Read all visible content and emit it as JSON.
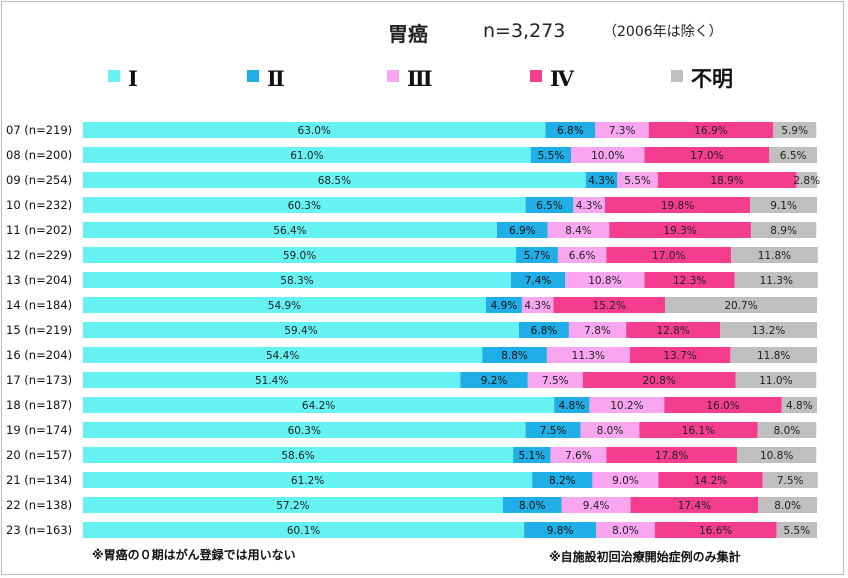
{
  "header": {
    "title": "胃癌",
    "n_label": "n=3,273",
    "exclusion": "（2006年は除く）"
  },
  "notes": {
    "left": "※胃癌の０期はがん登録では用いない",
    "right": "※自施設初回治療開始症例のみ集計"
  },
  "colors": {
    "I": "#66f2f2",
    "II": "#20aee6",
    "III": "#f9a6f1",
    "IV": "#f43d8e",
    "unknown": "#bfbfbf"
  },
  "chart_data": {
    "type": "bar",
    "stacked": "100%",
    "orientation": "horizontal",
    "legend_position": "top",
    "title": "胃癌",
    "categories": [
      "07 (n=219)",
      "08 (n=200)",
      "09 (n=254)",
      "10 (n=232)",
      "11 (n=202)",
      "12 (n=229)",
      "13 (n=204)",
      "14 (n=184)",
      "15 (n=219)",
      "16 (n=204)",
      "17 (n=173)",
      "18 (n=187)",
      "19 (n=174)",
      "20 (n=157)",
      "21 (n=134)",
      "22 (n=138)",
      "23 (n=163)"
    ],
    "series": [
      {
        "name": "Ⅰ",
        "key": "I",
        "values": [
          63.0,
          61.0,
          68.5,
          60.3,
          56.4,
          59.0,
          58.3,
          54.9,
          59.4,
          54.4,
          51.4,
          64.2,
          60.3,
          58.6,
          61.2,
          57.2,
          60.1
        ],
        "labels": [
          "63.0%",
          "61.0%",
          "68.5%",
          "60.3%",
          "56.4%",
          "59.0%",
          "58.3%",
          "54.9%",
          "59.4%",
          "54.4%",
          "51.4%",
          "64.2%",
          "60.3%",
          "58.6%",
          "61.2%",
          "57.2%",
          "60.1%"
        ]
      },
      {
        "name": "Ⅱ",
        "key": "II",
        "values": [
          6.8,
          5.5,
          4.3,
          6.5,
          6.9,
          5.7,
          7.4,
          4.9,
          6.8,
          8.8,
          9.2,
          4.8,
          7.5,
          5.1,
          8.2,
          8.0,
          9.8
        ],
        "labels": [
          "6.8%",
          "5.5%",
          "4.3%",
          "6.5%",
          "6.9%",
          "5.7%",
          "7.4%",
          "4.9%",
          "6.8%",
          "8.8%",
          "9.2%",
          "4.8%",
          "7.5%",
          "5.1%",
          "8.2%",
          "8.0%",
          "9.8%"
        ]
      },
      {
        "name": "Ⅲ",
        "key": "III",
        "values": [
          7.3,
          10.0,
          5.5,
          4.3,
          8.4,
          6.6,
          10.8,
          4.3,
          7.8,
          11.3,
          7.5,
          10.2,
          8.0,
          7.6,
          9.0,
          9.4,
          8.0
        ],
        "labels": [
          "7.3%",
          "10.0%",
          "5.5%",
          "4.3%",
          "8.4%",
          "6.6%",
          "10.8%",
          "4.3%",
          "7.8%",
          "11.3%",
          "7.5%",
          "10.2%",
          "8.0%",
          "7.6%",
          "9.0%",
          "9.4%",
          "8.0%"
        ]
      },
      {
        "name": "Ⅳ",
        "key": "IV",
        "values": [
          16.9,
          17.0,
          18.9,
          19.8,
          19.3,
          17.0,
          12.3,
          15.2,
          12.8,
          13.7,
          20.8,
          16.0,
          16.1,
          17.8,
          14.2,
          17.4,
          16.6
        ],
        "labels": [
          "16.9%",
          "17.0%",
          "18.9%",
          "19.8%",
          "19.3%",
          "17.0%",
          "12.3%",
          "15.2%",
          "12.8%",
          "13.7%",
          "20.8%",
          "16.0%",
          "16.1%",
          "17.8%",
          "14.2%",
          "17.4%",
          "16.6%"
        ]
      },
      {
        "name": "不明",
        "key": "unknown",
        "values": [
          5.9,
          6.5,
          2.8,
          9.1,
          8.9,
          11.8,
          11.3,
          20.7,
          13.2,
          11.8,
          11.0,
          4.8,
          8.0,
          10.8,
          7.5,
          8.0,
          5.5
        ],
        "labels": [
          "5.9%",
          "6.5%",
          "2.8%",
          "9.1%",
          "8.9%",
          "11.8%",
          "11.3%",
          "20.7%",
          "13.2%",
          "11.8%",
          "11.0%",
          "4.8%",
          "8.0%",
          "10.8%",
          "7.5%",
          "8.0%",
          "5.5%"
        ]
      }
    ],
    "xlim": [
      0,
      100
    ],
    "grid": false
  }
}
